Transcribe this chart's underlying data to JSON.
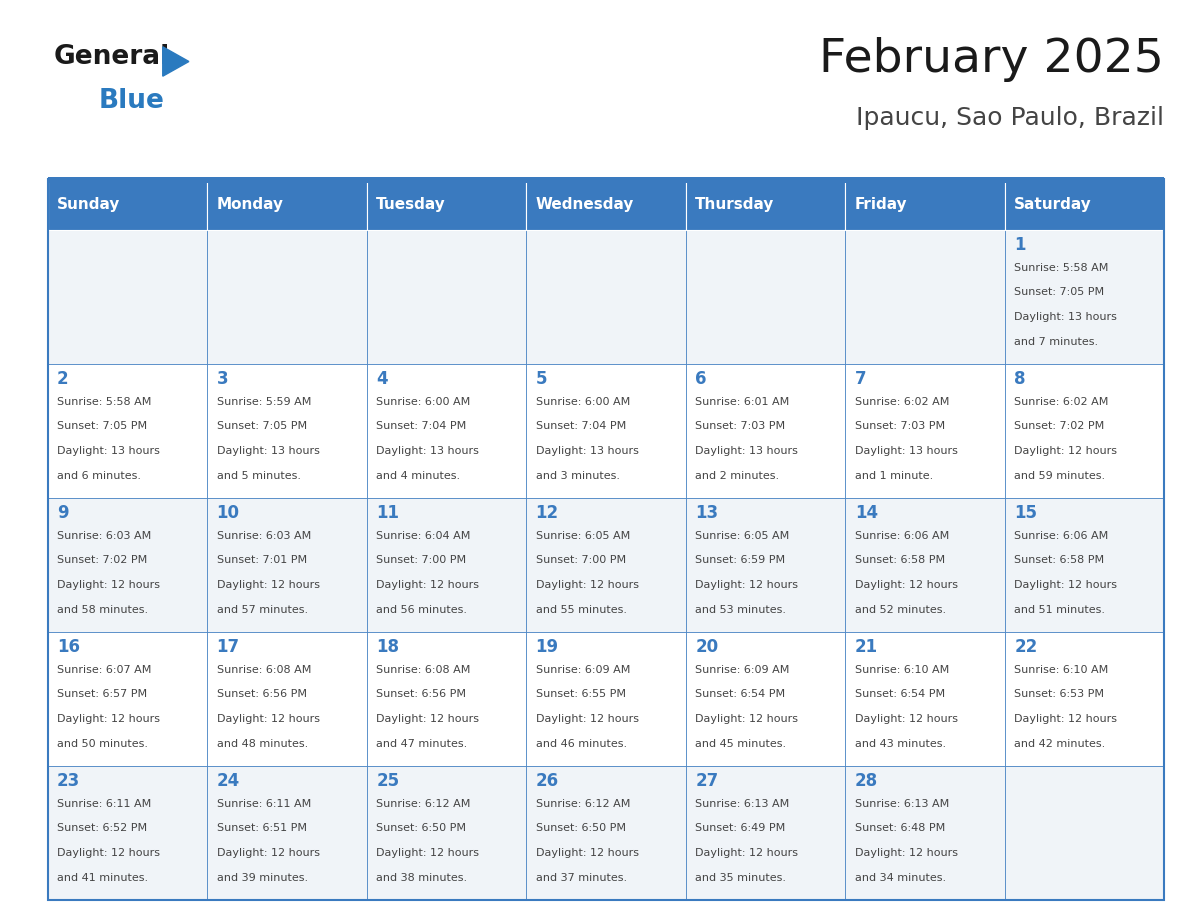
{
  "title": "February 2025",
  "subtitle": "Ipaucu, Sao Paulo, Brazil",
  "days_of_week": [
    "Sunday",
    "Monday",
    "Tuesday",
    "Wednesday",
    "Thursday",
    "Friday",
    "Saturday"
  ],
  "header_bg": "#3a7abf",
  "header_text": "#ffffff",
  "cell_bg_odd": "#f0f4f8",
  "cell_bg_even": "#ffffff",
  "border_color": "#3a7abf",
  "day_number_color": "#3a7abf",
  "cell_text_color": "#444444",
  "title_color": "#1a1a1a",
  "subtitle_color": "#444444",
  "logo_general_color": "#1a1a1a",
  "logo_blue_color": "#2a7abf",
  "weeks": [
    [
      null,
      null,
      null,
      null,
      null,
      null,
      1
    ],
    [
      2,
      3,
      4,
      5,
      6,
      7,
      8
    ],
    [
      9,
      10,
      11,
      12,
      13,
      14,
      15
    ],
    [
      16,
      17,
      18,
      19,
      20,
      21,
      22
    ],
    [
      23,
      24,
      25,
      26,
      27,
      28,
      null
    ]
  ],
  "cell_data": {
    "1": {
      "sunrise": "5:58 AM",
      "sunset": "7:05 PM",
      "daylight": "13 hours and 7 minutes."
    },
    "2": {
      "sunrise": "5:58 AM",
      "sunset": "7:05 PM",
      "daylight": "13 hours and 6 minutes."
    },
    "3": {
      "sunrise": "5:59 AM",
      "sunset": "7:05 PM",
      "daylight": "13 hours and 5 minutes."
    },
    "4": {
      "sunrise": "6:00 AM",
      "sunset": "7:04 PM",
      "daylight": "13 hours and 4 minutes."
    },
    "5": {
      "sunrise": "6:00 AM",
      "sunset": "7:04 PM",
      "daylight": "13 hours and 3 minutes."
    },
    "6": {
      "sunrise": "6:01 AM",
      "sunset": "7:03 PM",
      "daylight": "13 hours and 2 minutes."
    },
    "7": {
      "sunrise": "6:02 AM",
      "sunset": "7:03 PM",
      "daylight": "13 hours and 1 minute."
    },
    "8": {
      "sunrise": "6:02 AM",
      "sunset": "7:02 PM",
      "daylight": "12 hours and 59 minutes."
    },
    "9": {
      "sunrise": "6:03 AM",
      "sunset": "7:02 PM",
      "daylight": "12 hours and 58 minutes."
    },
    "10": {
      "sunrise": "6:03 AM",
      "sunset": "7:01 PM",
      "daylight": "12 hours and 57 minutes."
    },
    "11": {
      "sunrise": "6:04 AM",
      "sunset": "7:00 PM",
      "daylight": "12 hours and 56 minutes."
    },
    "12": {
      "sunrise": "6:05 AM",
      "sunset": "7:00 PM",
      "daylight": "12 hours and 55 minutes."
    },
    "13": {
      "sunrise": "6:05 AM",
      "sunset": "6:59 PM",
      "daylight": "12 hours and 53 minutes."
    },
    "14": {
      "sunrise": "6:06 AM",
      "sunset": "6:58 PM",
      "daylight": "12 hours and 52 minutes."
    },
    "15": {
      "sunrise": "6:06 AM",
      "sunset": "6:58 PM",
      "daylight": "12 hours and 51 minutes."
    },
    "16": {
      "sunrise": "6:07 AM",
      "sunset": "6:57 PM",
      "daylight": "12 hours and 50 minutes."
    },
    "17": {
      "sunrise": "6:08 AM",
      "sunset": "6:56 PM",
      "daylight": "12 hours and 48 minutes."
    },
    "18": {
      "sunrise": "6:08 AM",
      "sunset": "6:56 PM",
      "daylight": "12 hours and 47 minutes."
    },
    "19": {
      "sunrise": "6:09 AM",
      "sunset": "6:55 PM",
      "daylight": "12 hours and 46 minutes."
    },
    "20": {
      "sunrise": "6:09 AM",
      "sunset": "6:54 PM",
      "daylight": "12 hours and 45 minutes."
    },
    "21": {
      "sunrise": "6:10 AM",
      "sunset": "6:54 PM",
      "daylight": "12 hours and 43 minutes."
    },
    "22": {
      "sunrise": "6:10 AM",
      "sunset": "6:53 PM",
      "daylight": "12 hours and 42 minutes."
    },
    "23": {
      "sunrise": "6:11 AM",
      "sunset": "6:52 PM",
      "daylight": "12 hours and 41 minutes."
    },
    "24": {
      "sunrise": "6:11 AM",
      "sunset": "6:51 PM",
      "daylight": "12 hours and 39 minutes."
    },
    "25": {
      "sunrise": "6:12 AM",
      "sunset": "6:50 PM",
      "daylight": "12 hours and 38 minutes."
    },
    "26": {
      "sunrise": "6:12 AM",
      "sunset": "6:50 PM",
      "daylight": "12 hours and 37 minutes."
    },
    "27": {
      "sunrise": "6:13 AM",
      "sunset": "6:49 PM",
      "daylight": "12 hours and 35 minutes."
    },
    "28": {
      "sunrise": "6:13 AM",
      "sunset": "6:48 PM",
      "daylight": "12 hours and 34 minutes."
    }
  }
}
